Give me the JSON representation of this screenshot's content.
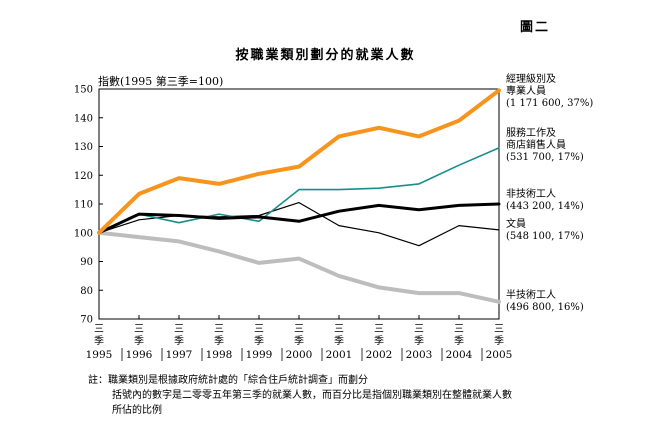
{
  "figure_number": "圖二",
  "chart_data": {
    "type": "line",
    "title": "按職業類別劃分的就業人數",
    "ylabel": "指數(1995 第三季=100)",
    "xlabel": "",
    "ylim": [
      70,
      150
    ],
    "yticks": [
      70,
      80,
      90,
      100,
      110,
      120,
      130,
      140,
      150
    ],
    "grid": false,
    "quarter_label": "三季",
    "years": [
      "1995",
      "1996",
      "1997",
      "1998",
      "1999",
      "2000",
      "2001",
      "2002",
      "2003",
      "2004",
      "2005"
    ],
    "series": [
      {
        "name": "經理級別及專業人員",
        "label_lines": [
          "經理級別及",
          "專業人員",
          "(1 171 600, 37%)"
        ],
        "color": "#f7941d",
        "width": 4,
        "values": [
          100,
          113.5,
          119,
          117,
          120.5,
          123,
          133.5,
          136.5,
          133.5,
          139,
          149.5
        ]
      },
      {
        "name": "服務工作及商店銷售人員",
        "label_lines": [
          "服務工作及",
          "商店銷售人員",
          "(531 700, 17%)"
        ],
        "color": "#1a8c8c",
        "width": 1.6,
        "values": [
          100,
          106.5,
          103.5,
          106.5,
          104,
          115,
          115,
          115.5,
          117,
          123.5,
          129.5
        ]
      },
      {
        "name": "非技術工人",
        "label_lines": [
          "非技術工人",
          "(443 200, 14%)"
        ],
        "color": "#000000",
        "width": 3,
        "values": [
          100,
          106.5,
          106,
          105,
          105.5,
          104,
          107.5,
          109.5,
          108,
          109.5,
          110
        ]
      },
      {
        "name": "文員",
        "label_lines": [
          "文員",
          "(548 100, 17%)"
        ],
        "color": "#000000",
        "width": 1.2,
        "values": [
          100,
          104.5,
          106,
          105.5,
          106,
          110.5,
          102.5,
          100,
          95.5,
          102.5,
          101
        ]
      },
      {
        "name": "半技術工人",
        "label_lines": [
          "半技術工人",
          "(496 800, 16%)"
        ],
        "color": "#bdbdbd",
        "width": 4,
        "values": [
          100,
          98.5,
          97,
          93.5,
          89.5,
          91,
          85,
          81,
          79,
          79,
          76
        ]
      }
    ]
  },
  "footnote": {
    "lines": [
      "註：職業類別是根據政府統計處的「綜合住戶統計調查」而劃分",
      "括號內的數字是二零零五年第三季的就業人數，而百分比是指個別職業類別在整體就業人數",
      "所佔的比例"
    ]
  }
}
